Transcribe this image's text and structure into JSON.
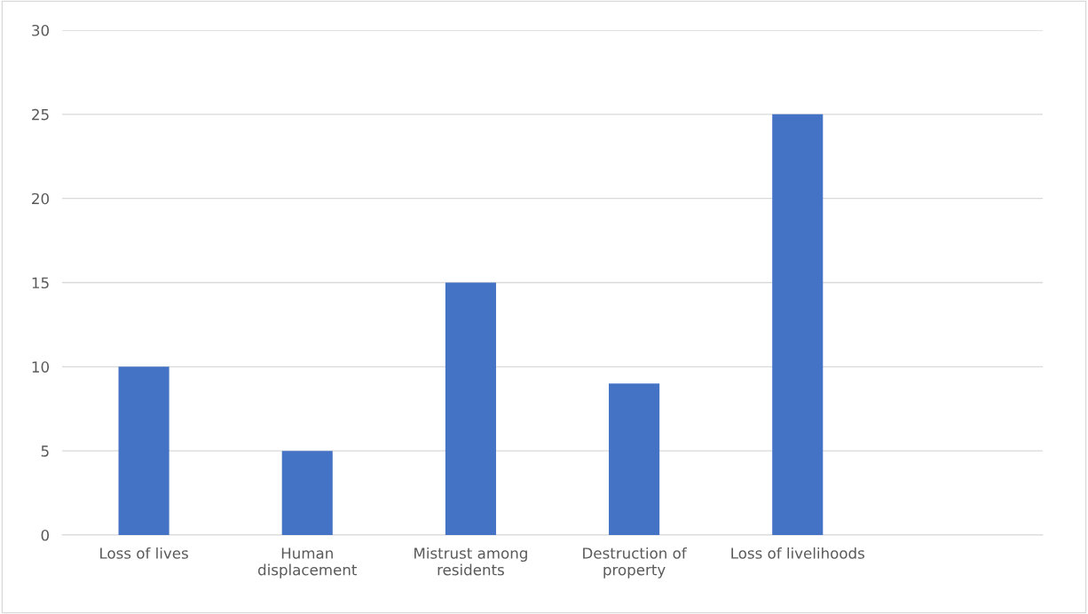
{
  "chart_data": {
    "type": "bar",
    "categories": [
      "Loss of lives",
      "Human\ndisplacement",
      "Mistrust among\nresidents",
      "Destruction of\nproperty",
      "Loss of livelihoods",
      null
    ],
    "values": [
      10,
      5,
      15,
      9,
      25,
      null
    ],
    "color": "#4472c4",
    "ylim": [
      0,
      30
    ],
    "yticks": [
      0,
      5,
      10,
      15,
      20,
      25,
      30
    ],
    "grid": "y",
    "legend": false
  }
}
